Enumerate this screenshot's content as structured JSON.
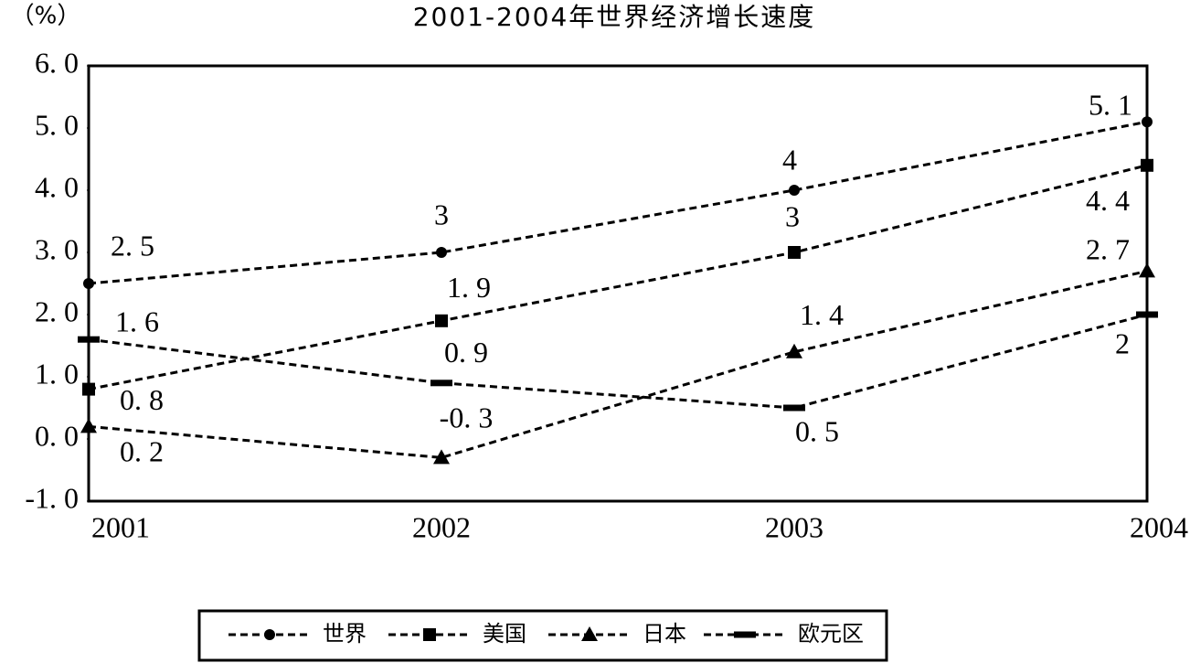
{
  "chart_data": {
    "type": "line",
    "title": "2001-2004年世界经济增长速度",
    "y_label": "（%）",
    "categories": [
      "2001",
      "2002",
      "2003",
      "2004"
    ],
    "ylim": [
      -1,
      6
    ],
    "yticks": [
      {
        "value": -1,
        "label": "-1. 0"
      },
      {
        "value": 0,
        "label": "0. 0"
      },
      {
        "value": 1,
        "label": "1. 0"
      },
      {
        "value": 2,
        "label": "2. 0"
      },
      {
        "value": 3,
        "label": "3. 0"
      },
      {
        "value": 4,
        "label": "4. 0"
      },
      {
        "value": 5,
        "label": "5. 0"
      },
      {
        "value": 6,
        "label": "6. 0"
      }
    ],
    "series": [
      {
        "name": "世界",
        "color": "#000000",
        "values": [
          2.5,
          3,
          4,
          5.1
        ],
        "value_labels": [
          "2. 5",
          "3",
          "4",
          "5. 1"
        ]
      },
      {
        "name": "美国",
        "color": "#000000",
        "values": [
          0.8,
          1.9,
          3,
          4.4
        ],
        "value_labels": [
          "0. 8",
          "1. 9",
          "3",
          "4. 4"
        ]
      },
      {
        "name": "日本",
        "color": "#000000",
        "values": [
          0.2,
          -0.3,
          1.4,
          2.7
        ],
        "value_labels": [
          "0. 2",
          "-0. 3",
          "1. 4",
          "2. 7"
        ]
      },
      {
        "name": "欧元区",
        "color": "#000000",
        "values": [
          1.6,
          0.9,
          0.5,
          2
        ],
        "value_labels": [
          "1. 6",
          "0. 9",
          "0. 5",
          "2"
        ]
      }
    ]
  }
}
